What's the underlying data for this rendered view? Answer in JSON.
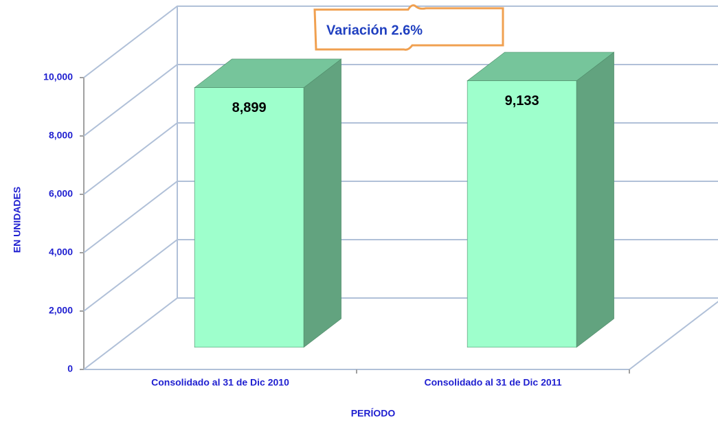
{
  "chart_data": {
    "type": "bar3d",
    "categories": [
      "Consolidado al 31 de Dic 2010",
      "Consolidado al 31 de Dic 2011"
    ],
    "values": [
      8899,
      9133
    ],
    "value_labels": [
      "8,899",
      "9,133"
    ],
    "ylim": [
      0,
      10000
    ],
    "yticks": [
      0,
      {
        "value": 2000,
        "label": "2,000"
      },
      {
        "value": 4000,
        "label": "4,000"
      },
      {
        "value": 6000,
        "label": "6,000"
      },
      {
        "value": 8000,
        "label": "8,000"
      },
      {
        "value": 10000,
        "label": "10,000"
      }
    ],
    "ylabel": "EN UNIDADES",
    "xlabel": "PERÍODO",
    "annotation": "Variación 2.6%",
    "colors": {
      "front": "#9effcc",
      "side": "#62a37f",
      "top": "#76c59b"
    },
    "grid": true
  }
}
